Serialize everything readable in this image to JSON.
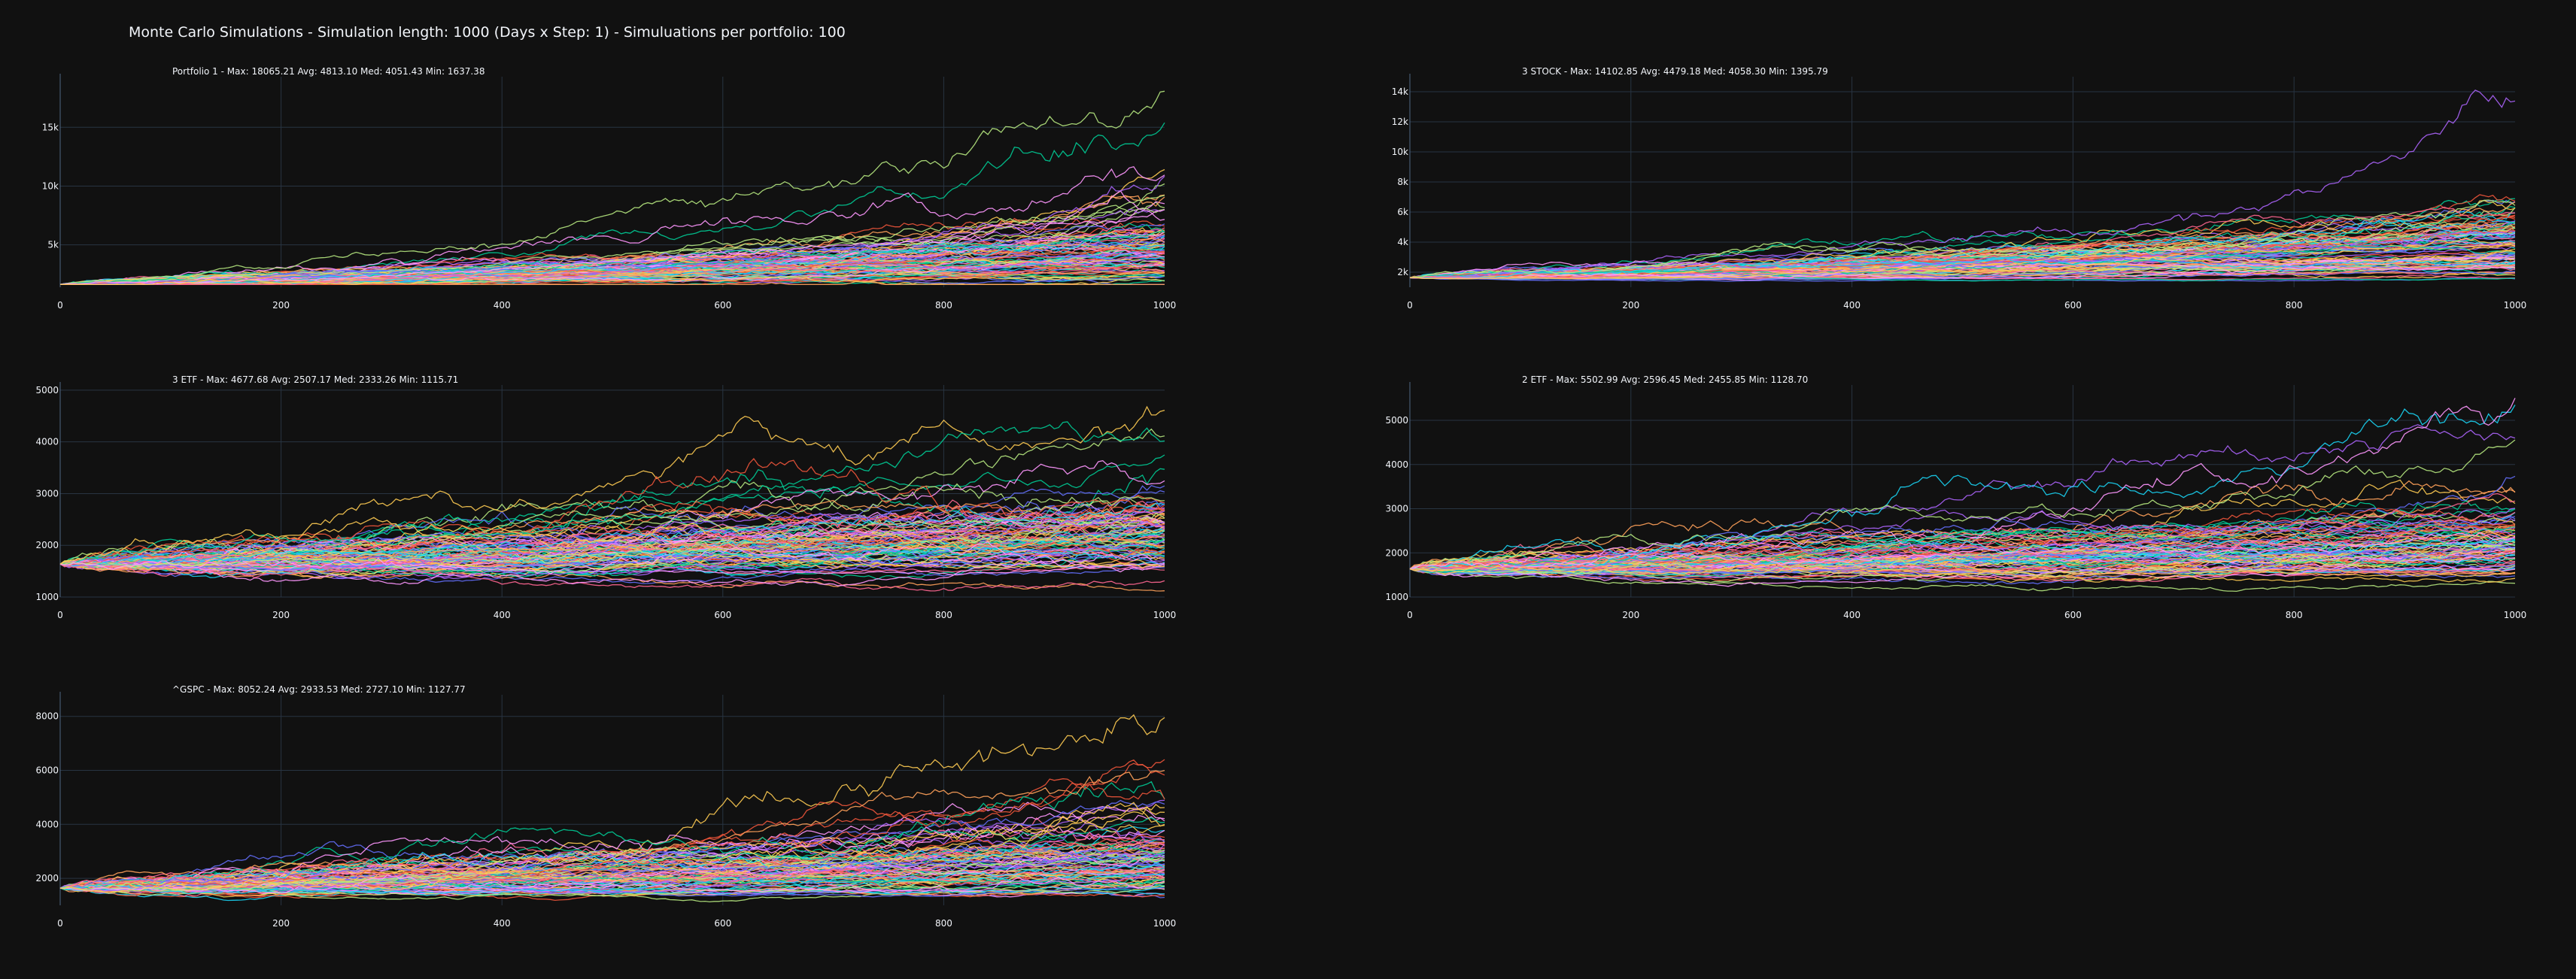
{
  "title": "Monte Carlo Simulations - Simulation length: 1000 (Days x Step: 1) - Simuluations per portfolio: 100",
  "colors": {
    "background": "#111111",
    "grid": "#283442",
    "text": "#f2f5fa",
    "palette": [
      "#636efa",
      "#EF553B",
      "#00cc96",
      "#ab63fa",
      "#FFA15A",
      "#19d3f3",
      "#FF6692",
      "#B6E880",
      "#FF97FF",
      "#FECB52"
    ]
  },
  "simulations_per_portfolio": 100,
  "chart_data": [
    {
      "type": "line",
      "title": "Portfolio 1 - Max: 18065.21 Avg: 4813.10 Med: 4051.43 Min: 1637.38",
      "xlabel": "",
      "ylabel": "",
      "xlim": [
        0,
        1000
      ],
      "ylim": [
        1400,
        19300
      ],
      "xticks": [
        0,
        200,
        400,
        600,
        800,
        1000
      ],
      "xtick_labels": [
        "0",
        "200",
        "400",
        "600",
        "800",
        "1000"
      ],
      "yticks": [
        5000,
        10000,
        15000
      ],
      "ytick_labels": [
        "5k",
        "10k",
        "15k"
      ],
      "grid": true,
      "start_value": 1637.38,
      "stats": {
        "max": 18065.21,
        "avg": 4813.1,
        "median": 4051.43,
        "min": 1637.38
      },
      "simulations": 100
    },
    {
      "type": "line",
      "title": "3 STOCK - Max: 14102.85 Avg: 4479.18 Med: 4058.30 Min: 1395.79",
      "xlabel": "",
      "ylabel": "",
      "xlim": [
        0,
        1000
      ],
      "ylim": [
        1000,
        15000
      ],
      "xticks": [
        0,
        200,
        400,
        600,
        800,
        1000
      ],
      "xtick_labels": [
        "0",
        "200",
        "400",
        "600",
        "800",
        "1000"
      ],
      "yticks": [
        2000,
        4000,
        6000,
        8000,
        10000,
        12000,
        14000
      ],
      "ytick_labels": [
        "2k",
        "4k",
        "6k",
        "8k",
        "10k",
        "12k",
        "14k"
      ],
      "grid": true,
      "start_value": 1637.38,
      "stats": {
        "max": 14102.85,
        "avg": 4479.18,
        "median": 4058.3,
        "min": 1395.79
      },
      "simulations": 100
    },
    {
      "type": "line",
      "title": "3 ETF - Max: 4677.68 Avg: 2507.17 Med: 2333.26 Min: 1115.71",
      "xlabel": "",
      "ylabel": "",
      "xlim": [
        0,
        1000
      ],
      "ylim": [
        1000,
        5100
      ],
      "xticks": [
        0,
        200,
        400,
        600,
        800,
        1000
      ],
      "xtick_labels": [
        "0",
        "200",
        "400",
        "600",
        "800",
        "1000"
      ],
      "yticks": [
        1000,
        2000,
        3000,
        4000,
        5000
      ],
      "ytick_labels": [
        "1000",
        "2000",
        "3000",
        "4000",
        "5000"
      ],
      "grid": true,
      "start_value": 1637.38,
      "stats": {
        "max": 4677.68,
        "avg": 2507.17,
        "median": 2333.26,
        "min": 1115.71
      },
      "simulations": 100
    },
    {
      "type": "line",
      "title": "2 ETF - Max: 5502.99 Avg: 2596.45 Med: 2455.85 Min: 1128.70",
      "xlabel": "",
      "ylabel": "",
      "xlim": [
        0,
        1000
      ],
      "ylim": [
        1000,
        5800
      ],
      "xticks": [
        0,
        200,
        400,
        600,
        800,
        1000
      ],
      "xtick_labels": [
        "0",
        "200",
        "400",
        "600",
        "800",
        "1000"
      ],
      "yticks": [
        1000,
        2000,
        3000,
        4000,
        5000
      ],
      "ytick_labels": [
        "1000",
        "2000",
        "3000",
        "4000",
        "5000"
      ],
      "grid": true,
      "start_value": 1637.38,
      "stats": {
        "max": 5502.99,
        "avg": 2596.45,
        "median": 2455.85,
        "min": 1128.7
      },
      "simulations": 100
    },
    {
      "type": "line",
      "title": "^GSPC - Max: 8052.24 Avg: 2933.53 Med: 2727.10 Min: 1127.77",
      "xlabel": "",
      "ylabel": "",
      "xlim": [
        0,
        1000
      ],
      "ylim": [
        1000,
        8800
      ],
      "xticks": [
        0,
        200,
        400,
        600,
        800,
        1000
      ],
      "xtick_labels": [
        "0",
        "200",
        "400",
        "600",
        "800",
        "1000"
      ],
      "yticks": [
        2000,
        4000,
        6000,
        8000
      ],
      "ytick_labels": [
        "2000",
        "4000",
        "6000",
        "8000"
      ],
      "grid": true,
      "start_value": 1637.38,
      "stats": {
        "max": 8052.24,
        "avg": 2933.53,
        "median": 2727.1,
        "min": 1127.77
      },
      "simulations": 100
    }
  ]
}
